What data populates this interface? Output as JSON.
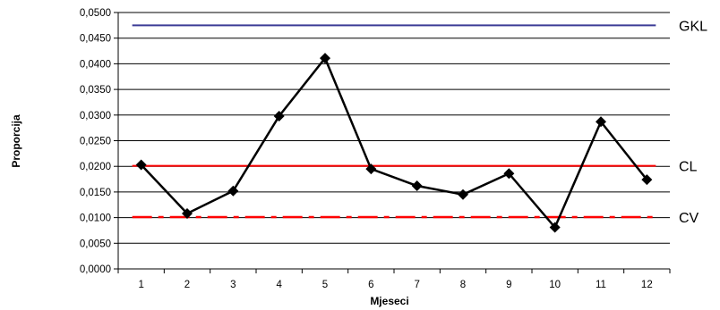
{
  "chart_data": {
    "type": "line",
    "xlabel": "Mjeseci",
    "ylabel": "Proporcija",
    "ylim": [
      0,
      0.05
    ],
    "ytick_step": 0.005,
    "ytick_labels": [
      "0,0000",
      "0,0050",
      "0,0100",
      "0,0150",
      "0,0200",
      "0,0250",
      "0,0300",
      "0,0350",
      "0,0400",
      "0,0450",
      "0,0500"
    ],
    "categories": [
      "1",
      "2",
      "3",
      "4",
      "5",
      "6",
      "7",
      "8",
      "9",
      "10",
      "11",
      "12"
    ],
    "grid": true,
    "series": [
      {
        "values": [
          0.0203,
          0.0108,
          0.0152,
          0.0298,
          0.0411,
          0.0195,
          0.0162,
          0.0145,
          0.0186,
          0.0081,
          0.0287,
          0.0174
        ],
        "color": "#000000",
        "marker": "diamond"
      }
    ],
    "reference_lines": [
      {
        "label": "GKL",
        "value": 0.0475,
        "color": "#3c3c96",
        "style": "solid"
      },
      {
        "label": "CL",
        "value": 0.0201,
        "color": "#ff0000",
        "style": "solid"
      },
      {
        "label": "CV",
        "value": 0.0101,
        "color": "#ff0000",
        "style": "dashed"
      }
    ]
  }
}
